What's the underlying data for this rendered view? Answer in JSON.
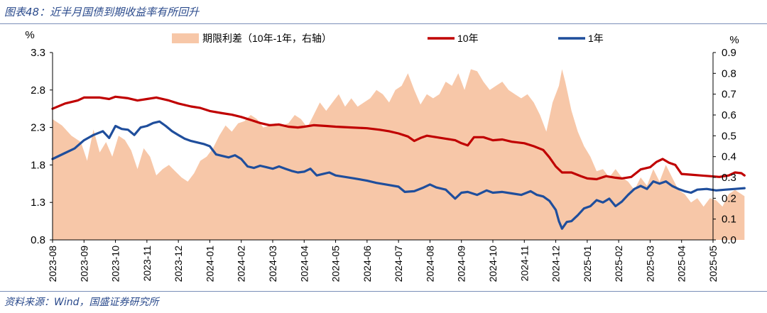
{
  "caption": "图表48：近半月国债到期收益率有所回升",
  "source": "资料来源：Wind，国盛证券研究所",
  "colors": {
    "spread": "#f7c7a8",
    "y10": "#c00000",
    "y1": "#1f4e9c"
  },
  "chart_data": {
    "type": "area",
    "left_unit": "%",
    "right_unit": "%",
    "left_axis": {
      "min": 0.8,
      "max": 3.3,
      "ticks": [
        "3.3",
        "2.8",
        "2.3",
        "1.8",
        "1.3",
        "0.8"
      ]
    },
    "right_axis": {
      "min": 0.0,
      "max": 0.9,
      "ticks": [
        "0.9",
        "0.8",
        "0.7",
        "0.6",
        "0.5",
        "0.4",
        "0.3",
        "0.2",
        "0.1",
        "0.0"
      ]
    },
    "x_ticks": [
      "2023-08",
      "2023-09",
      "2023-10",
      "2023-11",
      "2023-12",
      "2024-01",
      "2024-02",
      "2024-03",
      "2024-04",
      "2024-05",
      "2024-06",
      "2024-07",
      "2024-08",
      "2024-09",
      "2024-10",
      "2024-11",
      "2024-12",
      "2025-01",
      "2025-02",
      "2025-03",
      "2025-04",
      "2025-05"
    ],
    "legend": {
      "spread": "期限利差（10年-1年，右轴）",
      "y10": "10年",
      "y1": "1年"
    },
    "series": [
      {
        "key": "y10",
        "name": "10年",
        "axis": "left",
        "values": [
          [
            0.0,
            2.55
          ],
          [
            0.4,
            2.62
          ],
          [
            0.8,
            2.66
          ],
          [
            1.0,
            2.7
          ],
          [
            1.5,
            2.7
          ],
          [
            1.8,
            2.68
          ],
          [
            2.0,
            2.71
          ],
          [
            2.4,
            2.69
          ],
          [
            2.7,
            2.66
          ],
          [
            3.0,
            2.68
          ],
          [
            3.3,
            2.7
          ],
          [
            3.7,
            2.66
          ],
          [
            4.0,
            2.62
          ],
          [
            4.4,
            2.58
          ],
          [
            4.7,
            2.56
          ],
          [
            5.0,
            2.52
          ],
          [
            5.4,
            2.49
          ],
          [
            5.7,
            2.47
          ],
          [
            6.0,
            2.44
          ],
          [
            6.3,
            2.4
          ],
          [
            6.6,
            2.36
          ],
          [
            6.9,
            2.33
          ],
          [
            7.2,
            2.34
          ],
          [
            7.5,
            2.31
          ],
          [
            7.8,
            2.3
          ],
          [
            8.0,
            2.31
          ],
          [
            8.3,
            2.33
          ],
          [
            8.7,
            2.32
          ],
          [
            9.0,
            2.31
          ],
          [
            9.5,
            2.3
          ],
          [
            10.0,
            2.29
          ],
          [
            10.4,
            2.27
          ],
          [
            10.7,
            2.25
          ],
          [
            11.0,
            2.22
          ],
          [
            11.3,
            2.18
          ],
          [
            11.5,
            2.12
          ],
          [
            11.7,
            2.16
          ],
          [
            11.9,
            2.19
          ],
          [
            12.2,
            2.17
          ],
          [
            12.5,
            2.15
          ],
          [
            12.8,
            2.13
          ],
          [
            13.0,
            2.09
          ],
          [
            13.2,
            2.06
          ],
          [
            13.4,
            2.17
          ],
          [
            13.7,
            2.17
          ],
          [
            14.0,
            2.13
          ],
          [
            14.3,
            2.14
          ],
          [
            14.6,
            2.11
          ],
          [
            15.0,
            2.09
          ],
          [
            15.3,
            2.05
          ],
          [
            15.6,
            2.0
          ],
          [
            15.8,
            1.9
          ],
          [
            16.0,
            1.78
          ],
          [
            16.2,
            1.7
          ],
          [
            16.5,
            1.7
          ],
          [
            16.8,
            1.65
          ],
          [
            17.0,
            1.62
          ],
          [
            17.3,
            1.61
          ],
          [
            17.6,
            1.65
          ],
          [
            17.9,
            1.63
          ],
          [
            18.1,
            1.62
          ],
          [
            18.4,
            1.64
          ],
          [
            18.7,
            1.74
          ],
          [
            19.0,
            1.77
          ],
          [
            19.2,
            1.84
          ],
          [
            19.4,
            1.88
          ],
          [
            19.6,
            1.83
          ],
          [
            19.8,
            1.8
          ],
          [
            20.0,
            1.68
          ],
          [
            20.3,
            1.67
          ],
          [
            20.6,
            1.66
          ],
          [
            20.9,
            1.65
          ],
          [
            21.2,
            1.64
          ],
          [
            21.5,
            1.66
          ],
          [
            21.7,
            1.7
          ],
          [
            21.9,
            1.69
          ],
          [
            22.0,
            1.66
          ]
        ]
      },
      {
        "key": "y1",
        "name": "1年",
        "axis": "left",
        "values": [
          [
            0.0,
            1.88
          ],
          [
            0.4,
            1.96
          ],
          [
            0.7,
            2.02
          ],
          [
            1.0,
            2.13
          ],
          [
            1.3,
            2.2
          ],
          [
            1.6,
            2.25
          ],
          [
            1.8,
            2.16
          ],
          [
            2.0,
            2.32
          ],
          [
            2.2,
            2.28
          ],
          [
            2.4,
            2.27
          ],
          [
            2.6,
            2.2
          ],
          [
            2.8,
            2.3
          ],
          [
            3.0,
            2.32
          ],
          [
            3.2,
            2.36
          ],
          [
            3.4,
            2.38
          ],
          [
            3.6,
            2.32
          ],
          [
            3.8,
            2.25
          ],
          [
            4.0,
            2.2
          ],
          [
            4.2,
            2.15
          ],
          [
            4.4,
            2.12
          ],
          [
            4.6,
            2.1
          ],
          [
            4.8,
            2.08
          ],
          [
            5.0,
            2.05
          ],
          [
            5.2,
            1.94
          ],
          [
            5.4,
            1.92
          ],
          [
            5.6,
            1.9
          ],
          [
            5.8,
            1.93
          ],
          [
            6.0,
            1.88
          ],
          [
            6.2,
            1.78
          ],
          [
            6.4,
            1.76
          ],
          [
            6.6,
            1.79
          ],
          [
            6.8,
            1.77
          ],
          [
            7.0,
            1.75
          ],
          [
            7.2,
            1.78
          ],
          [
            7.4,
            1.75
          ],
          [
            7.6,
            1.72
          ],
          [
            7.8,
            1.7
          ],
          [
            8.0,
            1.71
          ],
          [
            8.2,
            1.75
          ],
          [
            8.4,
            1.66
          ],
          [
            8.6,
            1.68
          ],
          [
            8.8,
            1.7
          ],
          [
            9.0,
            1.66
          ],
          [
            9.3,
            1.64
          ],
          [
            9.6,
            1.62
          ],
          [
            10.0,
            1.59
          ],
          [
            10.3,
            1.56
          ],
          [
            10.6,
            1.54
          ],
          [
            11.0,
            1.51
          ],
          [
            11.2,
            1.44
          ],
          [
            11.5,
            1.45
          ],
          [
            11.8,
            1.5
          ],
          [
            12.0,
            1.54
          ],
          [
            12.2,
            1.5
          ],
          [
            12.5,
            1.47
          ],
          [
            12.8,
            1.35
          ],
          [
            13.0,
            1.43
          ],
          [
            13.2,
            1.44
          ],
          [
            13.5,
            1.4
          ],
          [
            13.8,
            1.46
          ],
          [
            14.0,
            1.43
          ],
          [
            14.3,
            1.44
          ],
          [
            14.6,
            1.42
          ],
          [
            14.9,
            1.4
          ],
          [
            15.2,
            1.45
          ],
          [
            15.4,
            1.4
          ],
          [
            15.6,
            1.38
          ],
          [
            15.8,
            1.32
          ],
          [
            16.0,
            1.2
          ],
          [
            16.1,
            1.05
          ],
          [
            16.2,
            0.95
          ],
          [
            16.35,
            1.04
          ],
          [
            16.5,
            1.05
          ],
          [
            16.7,
            1.13
          ],
          [
            16.9,
            1.22
          ],
          [
            17.1,
            1.25
          ],
          [
            17.3,
            1.33
          ],
          [
            17.5,
            1.3
          ],
          [
            17.7,
            1.35
          ],
          [
            17.9,
            1.25
          ],
          [
            18.1,
            1.31
          ],
          [
            18.3,
            1.4
          ],
          [
            18.5,
            1.48
          ],
          [
            18.7,
            1.52
          ],
          [
            18.9,
            1.48
          ],
          [
            19.1,
            1.58
          ],
          [
            19.3,
            1.55
          ],
          [
            19.5,
            1.58
          ],
          [
            19.7,
            1.52
          ],
          [
            19.9,
            1.48
          ],
          [
            20.1,
            1.45
          ],
          [
            20.3,
            1.43
          ],
          [
            20.5,
            1.47
          ],
          [
            20.8,
            1.48
          ],
          [
            21.1,
            1.46
          ],
          [
            21.4,
            1.47
          ],
          [
            21.7,
            1.48
          ],
          [
            22.0,
            1.49
          ]
        ]
      },
      {
        "key": "spread",
        "name": "期限利差（10年-1年，右轴）",
        "axis": "right",
        "values": [
          [
            0.0,
            0.58
          ],
          [
            0.3,
            0.55
          ],
          [
            0.6,
            0.5
          ],
          [
            0.9,
            0.47
          ],
          [
            1.1,
            0.38
          ],
          [
            1.3,
            0.53
          ],
          [
            1.5,
            0.42
          ],
          [
            1.7,
            0.47
          ],
          [
            1.9,
            0.4
          ],
          [
            2.1,
            0.5
          ],
          [
            2.3,
            0.48
          ],
          [
            2.5,
            0.43
          ],
          [
            2.7,
            0.34
          ],
          [
            2.9,
            0.44
          ],
          [
            3.1,
            0.4
          ],
          [
            3.3,
            0.31
          ],
          [
            3.5,
            0.34
          ],
          [
            3.7,
            0.36
          ],
          [
            3.9,
            0.33
          ],
          [
            4.1,
            0.3
          ],
          [
            4.3,
            0.28
          ],
          [
            4.5,
            0.32
          ],
          [
            4.7,
            0.38
          ],
          [
            4.9,
            0.4
          ],
          [
            5.1,
            0.44
          ],
          [
            5.3,
            0.5
          ],
          [
            5.5,
            0.55
          ],
          [
            5.7,
            0.52
          ],
          [
            5.9,
            0.56
          ],
          [
            6.1,
            0.57
          ],
          [
            6.3,
            0.6
          ],
          [
            6.5,
            0.58
          ],
          [
            6.7,
            0.54
          ],
          [
            6.9,
            0.55
          ],
          [
            7.1,
            0.56
          ],
          [
            7.3,
            0.55
          ],
          [
            7.5,
            0.56
          ],
          [
            7.7,
            0.6
          ],
          [
            7.9,
            0.58
          ],
          [
            8.1,
            0.54
          ],
          [
            8.3,
            0.6
          ],
          [
            8.5,
            0.66
          ],
          [
            8.7,
            0.62
          ],
          [
            8.9,
            0.66
          ],
          [
            9.1,
            0.7
          ],
          [
            9.3,
            0.64
          ],
          [
            9.5,
            0.68
          ],
          [
            9.7,
            0.64
          ],
          [
            9.9,
            0.66
          ],
          [
            10.1,
            0.68
          ],
          [
            10.3,
            0.72
          ],
          [
            10.5,
            0.7
          ],
          [
            10.7,
            0.66
          ],
          [
            10.9,
            0.72
          ],
          [
            11.1,
            0.74
          ],
          [
            11.3,
            0.8
          ],
          [
            11.5,
            0.72
          ],
          [
            11.7,
            0.65
          ],
          [
            11.9,
            0.7
          ],
          [
            12.1,
            0.68
          ],
          [
            12.3,
            0.7
          ],
          [
            12.5,
            0.76
          ],
          [
            12.7,
            0.74
          ],
          [
            12.9,
            0.8
          ],
          [
            13.1,
            0.72
          ],
          [
            13.3,
            0.82
          ],
          [
            13.5,
            0.81
          ],
          [
            13.7,
            0.76
          ],
          [
            13.9,
            0.72
          ],
          [
            14.1,
            0.74
          ],
          [
            14.3,
            0.76
          ],
          [
            14.5,
            0.72
          ],
          [
            14.7,
            0.7
          ],
          [
            14.9,
            0.68
          ],
          [
            15.1,
            0.7
          ],
          [
            15.3,
            0.66
          ],
          [
            15.5,
            0.6
          ],
          [
            15.7,
            0.52
          ],
          [
            15.9,
            0.66
          ],
          [
            16.1,
            0.74
          ],
          [
            16.2,
            0.82
          ],
          [
            16.3,
            0.76
          ],
          [
            16.5,
            0.62
          ],
          [
            16.7,
            0.52
          ],
          [
            16.9,
            0.45
          ],
          [
            17.1,
            0.4
          ],
          [
            17.3,
            0.33
          ],
          [
            17.5,
            0.34
          ],
          [
            17.7,
            0.3
          ],
          [
            17.9,
            0.34
          ],
          [
            18.1,
            0.3
          ],
          [
            18.3,
            0.28
          ],
          [
            18.5,
            0.24
          ],
          [
            18.7,
            0.3
          ],
          [
            18.9,
            0.26
          ],
          [
            19.1,
            0.34
          ],
          [
            19.3,
            0.28
          ],
          [
            19.5,
            0.36
          ],
          [
            19.7,
            0.3
          ],
          [
            19.9,
            0.24
          ],
          [
            20.1,
            0.22
          ],
          [
            20.3,
            0.18
          ],
          [
            20.5,
            0.2
          ],
          [
            20.7,
            0.16
          ],
          [
            20.9,
            0.2
          ],
          [
            21.1,
            0.19
          ],
          [
            21.3,
            0.16
          ],
          [
            21.5,
            0.22
          ],
          [
            21.7,
            0.24
          ],
          [
            21.9,
            0.22
          ],
          [
            22.0,
            0.21
          ]
        ]
      }
    ]
  }
}
